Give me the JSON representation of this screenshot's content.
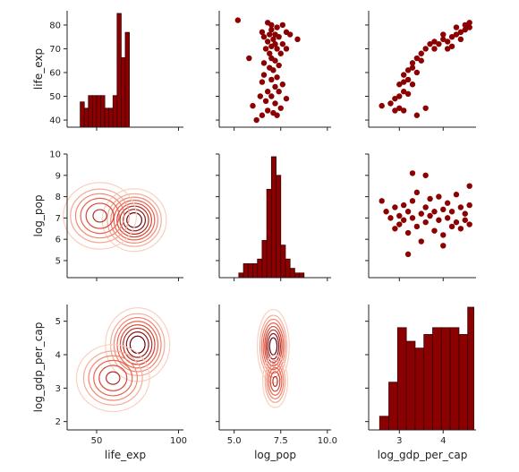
{
  "chart_data": {
    "type": "pairplot",
    "variables": [
      "life_exp",
      "log_pop",
      "log_gdp_per_cap"
    ],
    "colors": {
      "bar_fill": "#8b0000",
      "bar_edge": "#3a0000",
      "point": "#8b0000",
      "kde_light": "#fbd0bf",
      "kde_mid": "#e8503a",
      "kde_dark": "#67000d"
    },
    "axes": {
      "life_exp": {
        "label": "life_exp",
        "range": [
          32,
          103
        ],
        "ticks": [
          50,
          100
        ],
        "tick_labels": [
          "50",
          "100"
        ],
        "ylim": [
          37,
          86
        ],
        "yticks": [
          40,
          50,
          60,
          70,
          80
        ],
        "ytick_labels": [
          "40",
          "50",
          "60",
          "70",
          "80"
        ]
      },
      "log_pop": {
        "label": "log_pop",
        "range": [
          4.2,
          10.2
        ],
        "ticks": [
          5.0,
          7.5,
          10.0
        ],
        "tick_labels": [
          "5.0",
          "7.5",
          "10.0"
        ],
        "ylim": [
          4.2,
          10.0
        ],
        "yticks": [
          5,
          6,
          7,
          8,
          9,
          10
        ],
        "ytick_labels": [
          "5",
          "6",
          "7",
          "8",
          "9",
          "10"
        ]
      },
      "log_gdp_per_cap": {
        "label": "log_gdp_per_cap",
        "range": [
          2.3,
          4.75
        ],
        "ticks": [
          3,
          4
        ],
        "tick_labels": [
          "3",
          "4"
        ],
        "ylim": [
          1.75,
          5.5
        ],
        "yticks": [
          2,
          3,
          4,
          5
        ],
        "ytick_labels": [
          "2",
          "3",
          "4",
          "5"
        ]
      }
    },
    "histograms": {
      "life_exp": {
        "bins": [
          40,
          42.5,
          45,
          47.5,
          50,
          52.5,
          55,
          57.5,
          60,
          62.5,
          65,
          67.5,
          70,
          72.5,
          75,
          77.5,
          80
        ],
        "counts": [
          4,
          3,
          5,
          5,
          5,
          5,
          3,
          3,
          5,
          18,
          11,
          15,
          0,
          0,
          0,
          0
        ]
      },
      "log_pop": {
        "bins": [
          5.25,
          5.5,
          5.75,
          6.0,
          6.25,
          6.5,
          6.75,
          7.0,
          7.25,
          7.5,
          7.75,
          8.0,
          8.25,
          8.5,
          8.75
        ],
        "counts": [
          1,
          3,
          3,
          3,
          4,
          8,
          19,
          26,
          22,
          7,
          4,
          2,
          1,
          1
        ]
      },
      "log_gdp_per_cap": {
        "bins": [
          2.55,
          2.76,
          2.96,
          3.16,
          3.36,
          3.56,
          3.76,
          3.96,
          4.16,
          4.36,
          4.56,
          4.7
        ],
        "counts": [
          2,
          7,
          15,
          13,
          12,
          14,
          15,
          15,
          15,
          14,
          18
        ]
      }
    },
    "scatter": {
      "life_exp_vs_log_pop": [
        [
          5.2,
          82
        ],
        [
          6.8,
          81
        ],
        [
          7.0,
          80
        ],
        [
          7.3,
          79
        ],
        [
          7.6,
          80
        ],
        [
          7.0,
          78
        ],
        [
          6.5,
          77
        ],
        [
          6.9,
          76
        ],
        [
          7.2,
          76
        ],
        [
          7.8,
          77
        ],
        [
          8.0,
          76
        ],
        [
          6.6,
          75
        ],
        [
          7.1,
          74
        ],
        [
          7.4,
          75
        ],
        [
          8.4,
          74
        ],
        [
          6.8,
          73
        ],
        [
          7.2,
          72
        ],
        [
          7.0,
          71
        ],
        [
          7.6,
          72
        ],
        [
          6.7,
          70
        ],
        [
          7.3,
          70
        ],
        [
          7.8,
          70
        ],
        [
          6.9,
          68
        ],
        [
          7.5,
          68
        ],
        [
          5.8,
          66
        ],
        [
          7.0,
          66
        ],
        [
          7.2,
          65
        ],
        [
          6.6,
          64
        ],
        [
          7.4,
          63
        ],
        [
          6.9,
          62
        ],
        [
          7.1,
          61
        ],
        [
          6.6,
          59
        ],
        [
          7.3,
          58
        ],
        [
          7.0,
          57
        ],
        [
          6.5,
          56
        ],
        [
          7.6,
          55
        ],
        [
          7.2,
          54
        ],
        [
          6.8,
          52
        ],
        [
          7.4,
          52
        ],
        [
          6.4,
          50
        ],
        [
          7.0,
          50
        ],
        [
          7.8,
          49
        ],
        [
          6.7,
          48
        ],
        [
          7.2,
          47
        ],
        [
          6.0,
          46
        ],
        [
          7.5,
          45
        ],
        [
          6.8,
          44
        ],
        [
          7.1,
          43
        ],
        [
          6.5,
          42
        ],
        [
          7.3,
          42
        ],
        [
          6.2,
          40
        ]
      ],
      "life_exp_vs_log_gdp": [
        [
          2.6,
          46
        ],
        [
          2.8,
          47
        ],
        [
          2.9,
          44
        ],
        [
          3.0,
          45
        ],
        [
          3.1,
          44
        ],
        [
          2.9,
          49
        ],
        [
          3.0,
          50
        ],
        [
          3.1,
          52
        ],
        [
          3.2,
          51
        ],
        [
          3.0,
          55
        ],
        [
          3.1,
          56
        ],
        [
          3.2,
          57
        ],
        [
          3.3,
          55
        ],
        [
          3.1,
          59
        ],
        [
          3.2,
          61
        ],
        [
          3.3,
          62
        ],
        [
          3.4,
          60
        ],
        [
          3.3,
          64
        ],
        [
          3.4,
          66
        ],
        [
          3.5,
          65
        ],
        [
          3.5,
          68
        ],
        [
          3.6,
          70
        ],
        [
          3.7,
          72
        ],
        [
          3.8,
          73
        ],
        [
          3.9,
          72
        ],
        [
          4.0,
          74
        ],
        [
          4.1,
          73
        ],
        [
          4.2,
          75
        ],
        [
          4.3,
          76
        ],
        [
          4.4,
          77
        ],
        [
          4.2,
          71
        ],
        [
          4.5,
          78
        ],
        [
          4.6,
          79
        ],
        [
          4.6,
          81
        ],
        [
          4.5,
          80
        ],
        [
          4.3,
          79
        ],
        [
          4.1,
          70
        ],
        [
          3.8,
          70
        ],
        [
          3.4,
          42
        ],
        [
          3.6,
          45
        ],
        [
          4.0,
          76
        ],
        [
          4.4,
          74
        ]
      ],
      "log_pop_vs_log_gdp": [
        [
          2.6,
          7.8
        ],
        [
          2.7,
          7.3
        ],
        [
          2.8,
          7.0
        ],
        [
          2.9,
          6.5
        ],
        [
          2.9,
          7.5
        ],
        [
          3.0,
          7.1
        ],
        [
          3.0,
          6.7
        ],
        [
          3.1,
          7.6
        ],
        [
          3.1,
          6.9
        ],
        [
          3.2,
          7.3
        ],
        [
          3.2,
          6.3
        ],
        [
          3.3,
          7.8
        ],
        [
          3.3,
          7.0
        ],
        [
          3.4,
          8.2
        ],
        [
          3.4,
          6.6
        ],
        [
          3.5,
          7.2
        ],
        [
          3.5,
          5.9
        ],
        [
          3.6,
          7.5
        ],
        [
          3.6,
          6.8
        ],
        [
          3.7,
          7.9
        ],
        [
          3.7,
          7.1
        ],
        [
          3.8,
          6.4
        ],
        [
          3.8,
          7.3
        ],
        [
          3.9,
          8.0
        ],
        [
          3.9,
          6.9
        ],
        [
          4.0,
          7.4
        ],
        [
          4.0,
          6.2
        ],
        [
          4.1,
          7.0
        ],
        [
          4.1,
          7.7
        ],
        [
          4.2,
          6.6
        ],
        [
          4.2,
          7.3
        ],
        [
          4.3,
          8.1
        ],
        [
          4.3,
          6.8
        ],
        [
          4.4,
          7.5
        ],
        [
          4.4,
          6.5
        ],
        [
          4.5,
          7.2
        ],
        [
          4.5,
          6.9
        ],
        [
          4.6,
          7.6
        ],
        [
          4.6,
          6.7
        ],
        [
          4.6,
          8.5
        ],
        [
          3.3,
          9.1
        ],
        [
          3.6,
          9.0
        ],
        [
          3.2,
          5.3
        ],
        [
          4.0,
          5.7
        ]
      ]
    },
    "kde": {
      "life_exp_vs_log_pop": {
        "centers": [
          [
            73,
            6.9
          ],
          [
            52,
            7.1
          ]
        ],
        "spreads": [
          [
            8,
            0.6
          ],
          [
            10,
            0.7
          ]
        ]
      },
      "life_exp_vs_log_gdp": {
        "centers": [
          [
            75,
            4.3
          ],
          [
            60,
            3.3
          ]
        ],
        "spreads": [
          [
            8,
            0.45
          ],
          [
            10,
            0.45
          ]
        ]
      },
      "log_pop_vs_log_gdp": {
        "centers": [
          [
            7.1,
            4.25
          ],
          [
            7.2,
            3.2
          ]
        ],
        "spreads": [
          [
            0.35,
            0.45
          ],
          [
            0.3,
            0.35
          ]
        ]
      }
    }
  }
}
